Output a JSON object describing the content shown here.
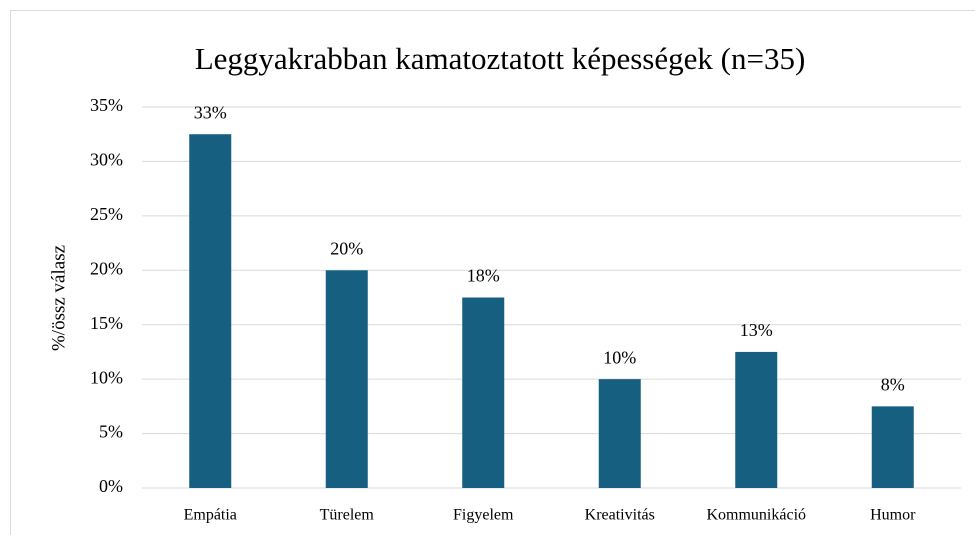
{
  "chart_data": {
    "type": "bar",
    "title": "Leggyakrabban kamatoztatott képességek (n=35)",
    "y_label": "%/össz válasz",
    "categories": [
      "Empátia",
      "Türelem",
      "Figyelem",
      "Kreativitás",
      "Kommunikáció",
      "Humor"
    ],
    "values": [
      32.5,
      20,
      17.5,
      10,
      12.5,
      7.5
    ],
    "value_labels": [
      "33%",
      "20%",
      "18%",
      "10%",
      "13%",
      "8%"
    ],
    "color": "#175f80",
    "ylim": [
      0,
      35
    ],
    "yticks": [
      {
        "value": 0,
        "label": "0%"
      },
      {
        "value": 5,
        "label": "5%"
      },
      {
        "value": 10,
        "label": "10%"
      },
      {
        "value": 15,
        "label": "15%"
      },
      {
        "value": 20,
        "label": "20%"
      },
      {
        "value": 25,
        "label": "25%"
      },
      {
        "value": 30,
        "label": "30%"
      },
      {
        "value": 35,
        "label": "35%"
      }
    ],
    "grid": true
  }
}
